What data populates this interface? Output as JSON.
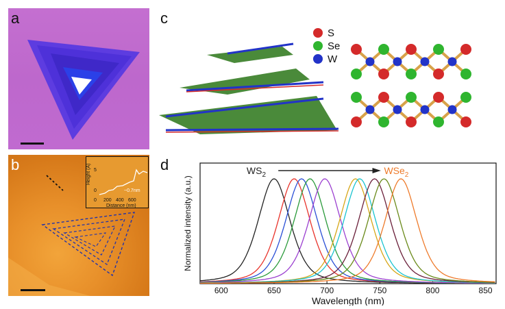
{
  "panels": {
    "a": {
      "letter": "a"
    },
    "b": {
      "letter": "b",
      "inset": {
        "ylabel": "Height (Å)",
        "xlabel": "Distance (nm)",
        "yticks": [
          "0",
          "5"
        ],
        "xticks": [
          "0",
          "200",
          "400",
          "600"
        ],
        "annotation": "~0.7nm"
      }
    },
    "c": {
      "letter": "c",
      "legend": [
        {
          "label": "S",
          "color": "#d42a2a"
        },
        {
          "label": "Se",
          "color": "#2fb52f"
        },
        {
          "label": "W",
          "color": "#2233c8"
        }
      ]
    },
    "d": {
      "letter": "d"
    }
  },
  "chart_data": {
    "type": "line",
    "xlabel": "Wavelength (nm)",
    "ylabel": "Normalized intensity (a.u.)",
    "xlim": [
      580,
      860
    ],
    "ylim": [
      0,
      1.15
    ],
    "xticks": [
      600,
      650,
      700,
      750,
      800,
      850
    ],
    "annotation_start": "WS2",
    "annotation_end": "WSe2",
    "series": [
      {
        "peak": 650,
        "fwhm": 36,
        "color": "#222222"
      },
      {
        "peak": 669,
        "fwhm": 36,
        "color": "#e8332b"
      },
      {
        "peak": 676,
        "fwhm": 36,
        "color": "#2a4fd6"
      },
      {
        "peak": 684,
        "fwhm": 36,
        "color": "#2a9a3a"
      },
      {
        "peak": 698,
        "fwhm": 36,
        "color": "#9b3fd0"
      },
      {
        "peak": 727,
        "fwhm": 36,
        "color": "#d6a618"
      },
      {
        "peak": 731,
        "fwhm": 36,
        "color": "#19c3cf"
      },
      {
        "peak": 745,
        "fwhm": 36,
        "color": "#6a1f3a"
      },
      {
        "peak": 754,
        "fwhm": 36,
        "color": "#6a8a1a"
      },
      {
        "peak": 770,
        "fwhm": 36,
        "color": "#ee7a2a"
      }
    ]
  }
}
